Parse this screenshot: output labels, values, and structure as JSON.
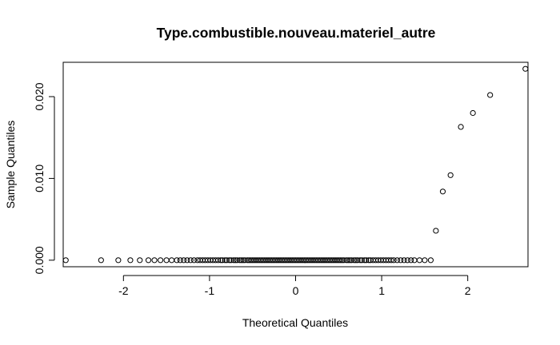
{
  "chart_data": {
    "type": "scatter",
    "title": "Type.combustible.nouveau.materiel_autre",
    "xlabel": "Theoretical Quantiles",
    "ylabel": "Sample Quantiles",
    "xlim": [
      -2.7,
      2.7
    ],
    "ylim": [
      -0.0008,
      0.0242
    ],
    "x_ticks": [
      -2,
      -1,
      0,
      1,
      2
    ],
    "x_tick_labels": [
      "-2",
      "-1",
      "0",
      "1",
      "2"
    ],
    "y_ticks": [
      0,
      0.01,
      0.02
    ],
    "y_tick_labels": [
      "0.000",
      "0.010",
      "0.020"
    ],
    "zero_value_points": {
      "y": 0,
      "x": [
        -2.67,
        -2.26,
        -2.06,
        -1.92,
        -1.81,
        -1.71,
        -1.64,
        -1.57,
        -1.5,
        -1.44,
        -1.38,
        -1.34,
        -1.3,
        -1.26,
        -1.22,
        -1.18,
        -1.14,
        -1.11,
        -1.08,
        -1.05,
        -1.02,
        -0.99,
        -0.96,
        -0.93,
        -0.9,
        -0.87,
        -0.85,
        -0.82,
        -0.8,
        -0.77,
        -0.75,
        -0.72,
        -0.7,
        -0.68,
        -0.65,
        -0.63,
        -0.61,
        -0.59,
        -0.56,
        -0.54,
        -0.52,
        -0.5,
        -0.48,
        -0.46,
        -0.44,
        -0.42,
        -0.4,
        -0.38,
        -0.36,
        -0.34,
        -0.32,
        -0.3,
        -0.28,
        -0.26,
        -0.24,
        -0.22,
        -0.2,
        -0.18,
        -0.16,
        -0.14,
        -0.12,
        -0.1,
        -0.08,
        -0.06,
        -0.04,
        -0.02,
        0.0,
        0.02,
        0.04,
        0.06,
        0.08,
        0.1,
        0.12,
        0.14,
        0.16,
        0.18,
        0.2,
        0.22,
        0.24,
        0.26,
        0.28,
        0.3,
        0.32,
        0.34,
        0.36,
        0.38,
        0.4,
        0.42,
        0.44,
        0.46,
        0.48,
        0.5,
        0.52,
        0.54,
        0.56,
        0.59,
        0.61,
        0.63,
        0.65,
        0.68,
        0.7,
        0.72,
        0.75,
        0.77,
        0.8,
        0.82,
        0.85,
        0.87,
        0.9,
        0.93,
        0.96,
        0.99,
        1.02,
        1.05,
        1.08,
        1.11,
        1.14,
        1.18,
        1.22,
        1.26,
        1.3,
        1.34,
        1.38,
        1.44,
        1.5,
        1.57
      ]
    },
    "positive_points": [
      {
        "x": 1.63,
        "y": 0.0036
      },
      {
        "x": 1.71,
        "y": 0.0084
      },
      {
        "x": 1.8,
        "y": 0.0104
      },
      {
        "x": 1.92,
        "y": 0.0163
      },
      {
        "x": 2.06,
        "y": 0.018
      },
      {
        "x": 2.26,
        "y": 0.0202
      },
      {
        "x": 2.67,
        "y": 0.0234
      }
    ],
    "grid": false,
    "legend": false
  }
}
